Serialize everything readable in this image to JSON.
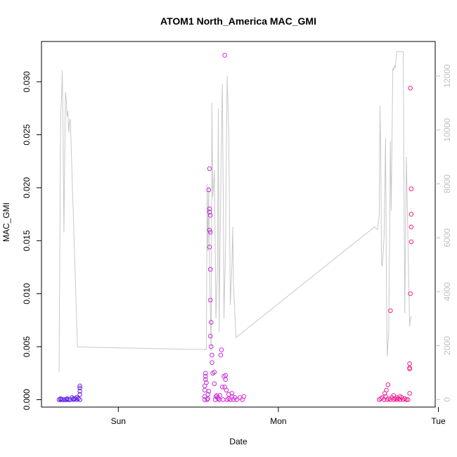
{
  "chart_data": {
    "type": "scatter",
    "title": "ATOM1 North_America MAC_GMI",
    "xlabel": "Date",
    "ylabel": "MAC_GMI",
    "y2label": "",
    "xlim": [
      -0.48,
      1.98
    ],
    "ylim": [
      -0.0007,
      0.0338
    ],
    "y2lim": [
      -280,
      13280
    ],
    "x_ticks": [
      {
        "value": 0,
        "label": "Sun"
      },
      {
        "value": 1,
        "label": "Mon"
      },
      {
        "value": 2,
        "label": "Tue"
      }
    ],
    "y_ticks": [
      {
        "value": 0.0,
        "label": "0.000"
      },
      {
        "value": 0.005,
        "label": "0.005"
      },
      {
        "value": 0.01,
        "label": "0.010"
      },
      {
        "value": 0.015,
        "label": "0.015"
      },
      {
        "value": 0.02,
        "label": "0.020"
      },
      {
        "value": 0.025,
        "label": "0.025"
      },
      {
        "value": 0.03,
        "label": "0.030"
      }
    ],
    "y2_ticks": [
      {
        "value": 0,
        "label": "0"
      },
      {
        "value": 2000,
        "label": "2000"
      },
      {
        "value": 4000,
        "label": "4000"
      },
      {
        "value": 6000,
        "label": "6000"
      },
      {
        "value": 8000,
        "label": "8000"
      },
      {
        "value": 10000,
        "label": "10000"
      },
      {
        "value": 12000,
        "label": "12000"
      }
    ],
    "grid": false,
    "legend": "none",
    "point_color_start": "#5a22e8",
    "point_color_mid": "#d92bd9",
    "point_color_end": "#f01f8c",
    "line_color": "#c8c8c8",
    "points": [
      [
        -0.37,
        0.0
      ],
      [
        -0.36,
        0.0001
      ],
      [
        -0.35,
        0.0
      ],
      [
        -0.34,
        0.0
      ],
      [
        -0.33,
        0.0
      ],
      [
        -0.32,
        0.0001
      ],
      [
        -0.31,
        0.0
      ],
      [
        -0.3,
        0.0
      ],
      [
        -0.29,
        0.0002
      ],
      [
        -0.28,
        0.0
      ],
      [
        -0.27,
        0.0001
      ],
      [
        -0.26,
        0.0
      ],
      [
        -0.25,
        0.0001
      ],
      [
        -0.24,
        0.0
      ],
      [
        -0.24,
        0.0005
      ],
      [
        -0.24,
        0.0008
      ],
      [
        -0.24,
        0.0011
      ],
      [
        -0.24,
        0.0013
      ],
      [
        -0.36,
        0.0
      ],
      [
        -0.32,
        0.0
      ],
      [
        -0.28,
        0.0001
      ],
      [
        -0.26,
        0.0002
      ],
      [
        0.54,
        0.0
      ],
      [
        0.54,
        0.0003
      ],
      [
        0.54,
        0.0009
      ],
      [
        0.54,
        0.0013
      ],
      [
        0.545,
        0.0019
      ],
      [
        0.545,
        0.0022
      ],
      [
        0.545,
        0.0025
      ],
      [
        0.55,
        0.0016
      ],
      [
        0.555,
        0.0
      ],
      [
        0.56,
        0.0001
      ],
      [
        0.56,
        0.0005
      ],
      [
        0.565,
        0.0008
      ],
      [
        0.565,
        0.0198
      ],
      [
        0.57,
        0.0218
      ],
      [
        0.57,
        0.018
      ],
      [
        0.57,
        0.0177
      ],
      [
        0.575,
        0.0174
      ],
      [
        0.57,
        0.016
      ],
      [
        0.575,
        0.0158
      ],
      [
        0.57,
        0.0144
      ],
      [
        0.575,
        0.0123
      ],
      [
        0.575,
        0.0094
      ],
      [
        0.575,
        0.006
      ],
      [
        0.58,
        0.0073
      ],
      [
        0.585,
        0.0042
      ],
      [
        0.58,
        0.005
      ],
      [
        0.585,
        0.0035
      ],
      [
        0.59,
        0.0025
      ],
      [
        0.6,
        0.0026
      ],
      [
        0.6,
        0.0015
      ],
      [
        0.605,
        0.0
      ],
      [
        0.61,
        0.0003
      ],
      [
        0.615,
        0.0004
      ],
      [
        0.62,
        0.0002
      ],
      [
        0.625,
        0.0001
      ],
      [
        0.63,
        0.0
      ],
      [
        0.635,
        0.0004
      ],
      [
        0.64,
        0.0042
      ],
      [
        0.645,
        0.0047
      ],
      [
        0.65,
        0.0012
      ],
      [
        0.655,
        0.0
      ],
      [
        0.66,
        0.0022
      ],
      [
        0.665,
        0.0012
      ],
      [
        0.67,
        0.0019
      ],
      [
        0.67,
        0.0023
      ],
      [
        0.675,
        0.0009
      ],
      [
        0.68,
        0.0
      ],
      [
        0.69,
        0.0001
      ],
      [
        0.7,
        0.0
      ],
      [
        0.71,
        0.0003
      ],
      [
        0.72,
        0.0
      ],
      [
        0.73,
        0.0002
      ],
      [
        0.74,
        0.0
      ],
      [
        0.76,
        0.0002
      ],
      [
        0.775,
        0.0
      ],
      [
        0.785,
        0.0003
      ],
      [
        0.71,
        0.0006
      ],
      [
        0.69,
        0.0005
      ],
      [
        0.665,
        0.0325
      ],
      [
        1.63,
        0.0
      ],
      [
        1.64,
        0.0001
      ],
      [
        1.65,
        0.0002
      ],
      [
        1.66,
        0.0
      ],
      [
        1.67,
        0.0003
      ],
      [
        1.68,
        0.0
      ],
      [
        1.69,
        0.0001
      ],
      [
        1.7,
        0.0
      ],
      [
        1.71,
        0.0002
      ],
      [
        1.72,
        0.0
      ],
      [
        1.73,
        0.0001
      ],
      [
        1.74,
        0.0
      ],
      [
        1.75,
        0.0001
      ],
      [
        1.76,
        0.0
      ],
      [
        1.77,
        0.0002
      ],
      [
        1.78,
        0.0
      ],
      [
        1.79,
        0.0001
      ],
      [
        1.8,
        0.0
      ],
      [
        1.81,
        0.0
      ],
      [
        1.82,
        0.0006
      ],
      [
        1.665,
        0.0006
      ],
      [
        1.675,
        0.0009
      ],
      [
        1.685,
        0.0014
      ],
      [
        1.7,
        0.0084
      ],
      [
        1.72,
        0.0004
      ],
      [
        1.74,
        0.0002
      ],
      [
        1.76,
        0.0003
      ],
      [
        1.82,
        0.0034
      ],
      [
        1.82,
        0.003
      ],
      [
        1.82,
        0.0029
      ],
      [
        1.825,
        0.0294
      ],
      [
        1.83,
        0.0199
      ],
      [
        1.83,
        0.0175
      ],
      [
        1.83,
        0.0163
      ],
      [
        1.83,
        0.0149
      ],
      [
        1.825,
        0.01
      ]
    ],
    "line": [
      [
        -0.37,
        1000
      ],
      [
        -0.36,
        10600
      ],
      [
        -0.355,
        11200
      ],
      [
        -0.35,
        12200
      ],
      [
        -0.345,
        10000
      ],
      [
        -0.34,
        6200
      ],
      [
        -0.33,
        11400
      ],
      [
        -0.325,
        11100
      ],
      [
        -0.32,
        10500
      ],
      [
        -0.315,
        10700
      ],
      [
        -0.31,
        9900
      ],
      [
        -0.305,
        10300
      ],
      [
        -0.3,
        10400
      ],
      [
        -0.255,
        1950
      ],
      [
        0.55,
        1850
      ],
      [
        0.555,
        8000
      ],
      [
        0.56,
        5500
      ],
      [
        0.565,
        7900
      ],
      [
        0.57,
        4700
      ],
      [
        0.58,
        1800
      ],
      [
        0.585,
        11000
      ],
      [
        0.59,
        7500
      ],
      [
        0.6,
        8500
      ],
      [
        0.61,
        3000
      ],
      [
        0.62,
        5000
      ],
      [
        0.625,
        10800
      ],
      [
        0.63,
        2500
      ],
      [
        0.635,
        5500
      ],
      [
        0.645,
        10000
      ],
      [
        0.65,
        11700
      ],
      [
        0.655,
        8000
      ],
      [
        0.66,
        3000
      ],
      [
        0.67,
        5700
      ],
      [
        0.675,
        9000
      ],
      [
        0.68,
        12000
      ],
      [
        0.69,
        10000
      ],
      [
        0.7,
        3500
      ],
      [
        0.71,
        5000
      ],
      [
        0.715,
        6400
      ],
      [
        0.72,
        4200
      ],
      [
        0.73,
        3000
      ],
      [
        0.735,
        2300
      ],
      [
        1.6,
        6400
      ],
      [
        1.62,
        6300
      ],
      [
        1.63,
        6800
      ],
      [
        1.635,
        10900
      ],
      [
        1.64,
        9000
      ],
      [
        1.645,
        5000
      ],
      [
        1.65,
        4950
      ],
      [
        1.66,
        6000
      ],
      [
        1.67,
        9700
      ],
      [
        1.675,
        4500
      ],
      [
        1.68,
        1600
      ],
      [
        1.69,
        2500
      ],
      [
        1.7,
        9600
      ],
      [
        1.705,
        7000
      ],
      [
        1.715,
        12300
      ],
      [
        1.72,
        12200
      ],
      [
        1.725,
        12400
      ],
      [
        1.73,
        12300
      ],
      [
        1.74,
        12900
      ],
      [
        1.75,
        12900
      ],
      [
        1.76,
        12900
      ],
      [
        1.78,
        12900
      ],
      [
        1.79,
        3200
      ],
      [
        1.8,
        9000
      ],
      [
        1.82,
        2700
      ],
      [
        1.825,
        3000
      ],
      [
        1.83,
        3100
      ]
    ]
  }
}
